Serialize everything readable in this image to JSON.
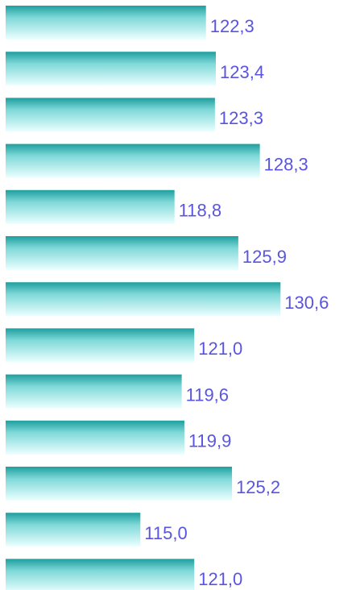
{
  "chart_data": {
    "type": "barh",
    "categories": [
      null,
      null,
      null,
      null,
      null,
      null,
      null,
      null,
      null,
      null,
      null,
      null,
      null
    ],
    "values": [
      122.3,
      123.4,
      123.3,
      128.3,
      118.8,
      125.9,
      130.6,
      121.0,
      119.6,
      119.9,
      125.2,
      115.0,
      121.0
    ],
    "value_labels": [
      "122,3",
      "123,4",
      "123,3",
      "128,3",
      "118,8",
      "125,9",
      "130,6",
      "121,0",
      "119,6",
      "119,9",
      "125,2",
      "115,0",
      "121,0"
    ],
    "color": "#1e9e9e",
    "xlim": [
      100,
      139
    ]
  }
}
